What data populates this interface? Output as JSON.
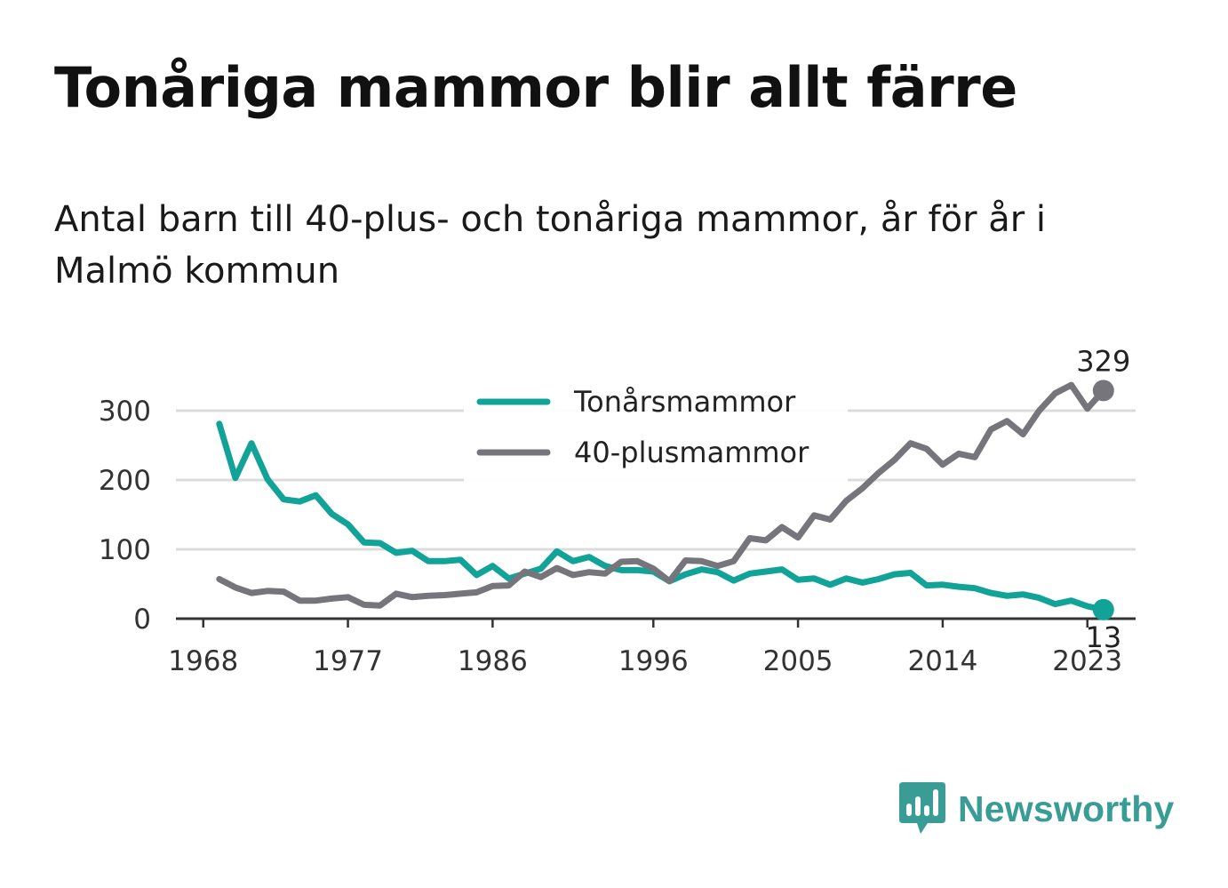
{
  "title": "Tonåriga mammor blir allt färre",
  "subtitle": "Antal barn till 40-plus- och tonåriga mammor, år för år i Malmö kommun",
  "brand": {
    "name": "Newsworthy",
    "icon": "newsworthy-bar-chart-logo",
    "color": "#3a9d95"
  },
  "chart_data": {
    "type": "line",
    "title": "Tonåriga mammor blir allt färre",
    "subtitle": "Antal barn till 40-plus- och tonåriga mammor, år för år i Malmö kommun",
    "xlabel": "",
    "ylabel": "",
    "x_ticks": [
      1968,
      1977,
      1986,
      1996,
      2005,
      2014,
      2023
    ],
    "y_ticks": [
      0,
      100,
      200,
      300
    ],
    "xlim": [
      1966.3,
      2026
    ],
    "ylim": [
      0,
      300
    ],
    "grid": true,
    "legend_placement": "top-center",
    "x": [
      1969,
      1970,
      1971,
      1972,
      1973,
      1974,
      1975,
      1976,
      1977,
      1978,
      1979,
      1980,
      1981,
      1982,
      1983,
      1984,
      1985,
      1986,
      1987,
      1988,
      1989,
      1990,
      1991,
      1992,
      1993,
      1994,
      1995,
      1996,
      1997,
      1998,
      1999,
      2000,
      2001,
      2002,
      2003,
      2004,
      2005,
      2006,
      2007,
      2008,
      2009,
      2010,
      2011,
      2012,
      2013,
      2014,
      2015,
      2016,
      2017,
      2018,
      2019,
      2020,
      2021,
      2022,
      2023,
      2024
    ],
    "series": [
      {
        "name": "Tonårsmammor",
        "color": "#12a398",
        "values": [
          281,
          203,
          253,
          201,
          172,
          169,
          178,
          151,
          136,
          110,
          109,
          95,
          98,
          83,
          83,
          85,
          63,
          76,
          58,
          65,
          72,
          97,
          83,
          89,
          76,
          70,
          70,
          68,
          54,
          64,
          71,
          67,
          55,
          65,
          68,
          71,
          56,
          58,
          49,
          58,
          52,
          57,
          64,
          66,
          48,
          49,
          46,
          44,
          37,
          33,
          35,
          30,
          21,
          26,
          18,
          13
        ]
      },
      {
        "name": "40-plusmammor",
        "color": "#77757c",
        "values": [
          57,
          45,
          37,
          40,
          39,
          26,
          26,
          29,
          31,
          20,
          19,
          36,
          31,
          33,
          34,
          36,
          38,
          47,
          48,
          68,
          60,
          73,
          63,
          67,
          65,
          82,
          83,
          72,
          54,
          84,
          83,
          76,
          83,
          116,
          113,
          132,
          117,
          149,
          143,
          170,
          188,
          210,
          229,
          253,
          245,
          222,
          238,
          233,
          273,
          285,
          266,
          300,
          325,
          337,
          303,
          329
        ]
      }
    ],
    "end_labels": [
      {
        "series": "40-plusmammor",
        "x": 2024,
        "value": 329,
        "label": "329"
      },
      {
        "series": "Tonårsmammor",
        "x": 2024,
        "value": 13,
        "label": "13"
      }
    ]
  }
}
